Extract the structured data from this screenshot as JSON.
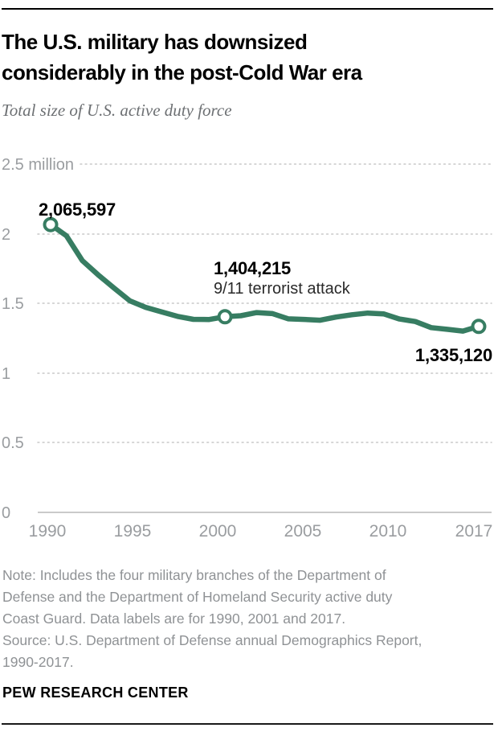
{
  "header": {
    "title_lines": [
      "The U.S. military has downsized",
      "considerably in the post-Cold War era"
    ],
    "subtitle": "Total size of U.S. active duty force"
  },
  "chart_data": {
    "type": "line",
    "title": "Total size of U.S. active duty force",
    "x": [
      1990,
      1991,
      1992,
      1993,
      1994,
      1995,
      1996,
      1997,
      1998,
      1999,
      2000,
      2001,
      2002,
      2003,
      2004,
      2005,
      2006,
      2007,
      2008,
      2009,
      2010,
      2011,
      2012,
      2013,
      2014,
      2015,
      2016,
      2017
    ],
    "series": [
      {
        "name": "Total U.S. active duty force",
        "values": [
          2065597,
          1985555,
          1807177,
          1705103,
          1610490,
          1518224,
          1471722,
          1438562,
          1406830,
          1385703,
          1384338,
          1404215,
          1411634,
          1434377,
          1426836,
          1389394,
          1384968,
          1379551,
          1401757,
          1418542,
          1430985,
          1425113,
          1388028,
          1370249,
          1326273,
          1313940,
          1301443,
          1335120
        ]
      }
    ],
    "line_color": "#377d62",
    "marker_fill": "#ffffff",
    "ylim": [
      0,
      2500000
    ],
    "y_ticks": {
      "values": [
        2500000,
        2000000,
        1500000,
        1000000,
        500000,
        0
      ],
      "labels": [
        "2.5 million",
        "2",
        "1.5",
        "1",
        "0.5",
        "0"
      ]
    },
    "x_tick_labels": [
      "1990",
      "1995",
      "2000",
      "2005",
      "2010",
      "2017"
    ],
    "grid": "horizontal dotted",
    "legend": "none",
    "callouts": [
      {
        "year": 1990,
        "label": "2,065,597"
      },
      {
        "year": 2001,
        "label": "1,404,215",
        "sublabel": "9/11 terrorist attack"
      },
      {
        "year": 2017,
        "label": "1,335,120"
      }
    ]
  },
  "footer": {
    "note_lines": [
      "Note: Includes the four military branches of the Department of",
      "Defense and the Department of Homeland Security active duty",
      "Coast Guard. Data labels are for 1990, 2001 and 2017."
    ],
    "source_lines": [
      "Source: U.S. Department of Defense annual Demographics Report,",
      "1990-2017."
    ],
    "brand": "PEW RESEARCH CENTER"
  }
}
